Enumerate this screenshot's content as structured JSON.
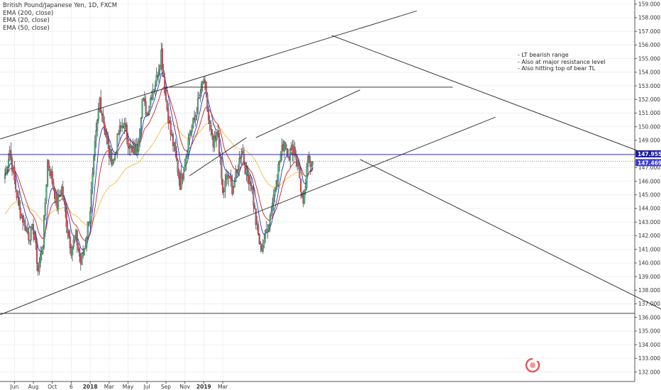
{
  "legend": {
    "title": "British Pound/Japanese Yen, 1D, FXCM",
    "lines": [
      "EMA (200, close)",
      "EMA (20, close)",
      "EMA (50, close)"
    ]
  },
  "notes": [
    "- LT bearish range",
    "- Also at major resistance level",
    "- Also hitting top of bear TL"
  ],
  "colors": {
    "up": "#53b987",
    "down": "#eb4d5c",
    "ema200": "#f5b942",
    "ema20": "#2233cc",
    "ema50": "#cc2222",
    "price_line": "#1d1da3",
    "last_tag": "#3a3ad6",
    "trendline": "#222222",
    "arrow": "#5b6fc4"
  },
  "price_tags": {
    "current": "147.955",
    "last": "147.469"
  },
  "chart_data": {
    "type": "candlestick",
    "title": "British Pound/Japanese Yen, 1D, FXCM",
    "y_range": [
      131.3,
      159.3
    ],
    "y_ticks": [
      "132.000",
      "133.000",
      "134.000",
      "135.000",
      "136.000",
      "137.000",
      "138.000",
      "139.000",
      "140.000",
      "141.000",
      "142.000",
      "143.000",
      "144.000",
      "145.000",
      "146.000",
      "147.000",
      "148.000",
      "149.000",
      "150.000",
      "151.000",
      "152.000",
      "153.000",
      "154.000",
      "155.000",
      "156.000",
      "157.000",
      "158.000",
      "159.000"
    ],
    "x_ticks": [
      "Jun",
      "Aug",
      "Oct",
      "6",
      "2018",
      "Mar",
      "May",
      "Jul",
      "Sep",
      "Nov",
      "2019",
      "Mar"
    ],
    "grid": true,
    "horizontal_levels": [
      {
        "name": "current-price-line",
        "value": 147.955
      },
      {
        "name": "last-close-line",
        "value": 147.469
      },
      {
        "name": "major-support-line",
        "value": 136.3
      }
    ],
    "price_path": [
      [
        0,
        146.5
      ],
      [
        1,
        148.3
      ],
      [
        2,
        146
      ],
      [
        3,
        144
      ],
      [
        4,
        143
      ],
      [
        5,
        142
      ],
      [
        6,
        142.5
      ],
      [
        7,
        139.5
      ],
      [
        8,
        141.5
      ],
      [
        9,
        147.5
      ],
      [
        10,
        146
      ],
      [
        11,
        144.3
      ],
      [
        12,
        145.5
      ],
      [
        13,
        143
      ],
      [
        14,
        141
      ],
      [
        15,
        142
      ],
      [
        16,
        140
      ],
      [
        17,
        141.5
      ],
      [
        18,
        144
      ],
      [
        19,
        148.5
      ],
      [
        20,
        152
      ],
      [
        21,
        150
      ],
      [
        22,
        148
      ],
      [
        23,
        147.5
      ],
      [
        24,
        149.5
      ],
      [
        25,
        150.3
      ],
      [
        26,
        149
      ],
      [
        27,
        148
      ],
      [
        28,
        148.5
      ],
      [
        29,
        152
      ],
      [
        30,
        151
      ],
      [
        31,
        152.5
      ],
      [
        32,
        153.5
      ],
      [
        33,
        155.5
      ],
      [
        34,
        152
      ],
      [
        35,
        149.5
      ],
      [
        36,
        148
      ],
      [
        37,
        145.8
      ],
      [
        38,
        147.5
      ],
      [
        39,
        149.5
      ],
      [
        40,
        150.5
      ],
      [
        41,
        152
      ],
      [
        42,
        153.5
      ],
      [
        43,
        150.5
      ],
      [
        44,
        148.5
      ],
      [
        45,
        149.5
      ],
      [
        46,
        145
      ],
      [
        47,
        146.5
      ],
      [
        48,
        145.5
      ],
      [
        49,
        146.5
      ],
      [
        50,
        148.5
      ],
      [
        51,
        146.5
      ],
      [
        52,
        146
      ],
      [
        53,
        143
      ],
      [
        54,
        141
      ],
      [
        55,
        142
      ],
      [
        56,
        143.5
      ],
      [
        57,
        145.5
      ],
      [
        58,
        147.5
      ],
      [
        59,
        149
      ],
      [
        60,
        148
      ],
      [
        61,
        148.5
      ],
      [
        62,
        147
      ],
      [
        63,
        144
      ],
      [
        64,
        147.5
      ],
      [
        65,
        147.47
      ]
    ],
    "emas": [
      {
        "name": "EMA (200, close)",
        "period": 200
      },
      {
        "name": "EMA (20, close)",
        "period": 20
      },
      {
        "name": "EMA (50, close)",
        "period": 50
      }
    ],
    "trendlines": [
      {
        "name": "channel-upper",
        "from": [
          -0.5,
          149.1
        ],
        "to": [
          43.5,
          158.5
        ]
      },
      {
        "name": "channel-lower",
        "from": [
          -0.5,
          136.2
        ],
        "to": [
          51.8,
          150.7
        ]
      },
      {
        "name": "resistance-153",
        "from": [
          16.8,
          152.9
        ],
        "to": [
          47.3,
          152.9
        ]
      },
      {
        "name": "bear-tl-upper",
        "from": [
          34.5,
          156.7
        ],
        "to": [
          68.5,
          147.8
        ]
      },
      {
        "name": "bear-tl-lower",
        "from": [
          37.5,
          147.6
        ],
        "to": [
          70.5,
          136.2
        ]
      },
      {
        "name": "short-channel-lower",
        "from": [
          19.5,
          146.4
        ],
        "to": [
          25.5,
          149.2
        ]
      },
      {
        "name": "short-channel-upper",
        "from": [
          26.5,
          149.2
        ],
        "to": [
          37.5,
          152.7
        ]
      }
    ],
    "projection_arrow": {
      "from": [
        71.8,
        147.4
      ],
      "to": [
        76.4,
        140.6
      ]
    }
  }
}
